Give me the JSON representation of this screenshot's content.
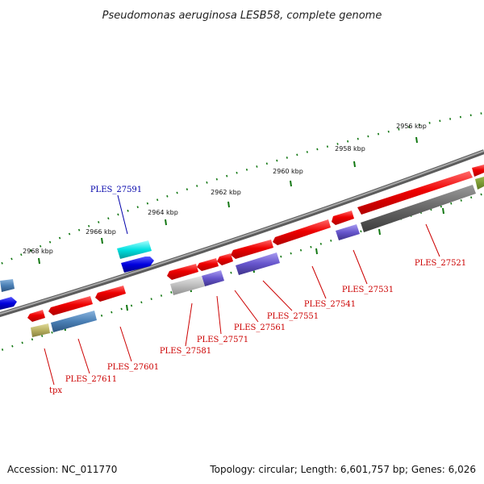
{
  "title": "Pseudomonas aeruginosa LESB58, complete genome",
  "footer": {
    "accession": "Accession: NC_011770",
    "topology": "Topology: circular; Length: 6,601,757 bp; Genes: 6,026"
  },
  "colors": {
    "forward_gene": "#ee0000",
    "blue_gene": "#0000dd",
    "cyan_gene": "#00dddd",
    "steel_gene": "#4a7fb5",
    "violet_gene": "#6655cc",
    "grey_gene": "#666666",
    "light_grey_gene": "#b8b8b8",
    "olive_gene": "#b8b060",
    "backbone": "#808080",
    "ticks": "#117711",
    "label_red": "#cc0000",
    "label_blue": "#0000aa"
  },
  "scale_labels": [
    "2956 kbp",
    "2958 kbp",
    "2960 kbp",
    "2962 kbp",
    "2964 kbp",
    "2966 kbp",
    "2968 kbp"
  ],
  "gene_labels": {
    "ples_27591": "PLES_27591",
    "ples_27521": "PLES_27521",
    "ples_27531": "PLES_27531",
    "ples_27541": "PLES_27541",
    "ples_27551": "PLES_27551",
    "ples_27561": "PLES_27561",
    "ples_27571": "PLES_27571",
    "ples_27581": "PLES_27581",
    "ples_27601": "PLES_27601",
    "ples_27611": "PLES_27611",
    "tpx": "tpx"
  }
}
